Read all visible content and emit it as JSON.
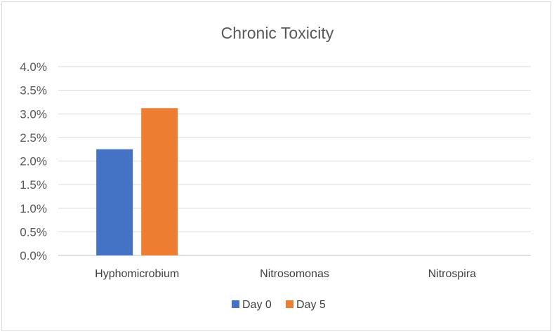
{
  "chart_data": {
    "type": "bar",
    "title": "Chronic Toxicity",
    "xlabel": "",
    "ylabel": "",
    "categories": [
      "Hyphomicrobium",
      "Nitrosomonas",
      "Nitrospira"
    ],
    "series": [
      {
        "name": "Day 0",
        "color": "#4472c4",
        "values": [
          0.0225,
          0,
          0
        ]
      },
      {
        "name": "Day 5",
        "color": "#ed7d31",
        "values": [
          0.0312,
          0,
          0
        ]
      }
    ],
    "ylim": [
      0,
      0.04
    ],
    "yticks": [
      0,
      0.005,
      0.01,
      0.015,
      0.02,
      0.025,
      0.03,
      0.035,
      0.04
    ],
    "ytick_labels": [
      "0.0%",
      "0.5%",
      "1.0%",
      "1.5%",
      "2.0%",
      "2.5%",
      "3.0%",
      "3.5%",
      "4.0%"
    ],
    "grid": true,
    "legend_position": "bottom"
  }
}
